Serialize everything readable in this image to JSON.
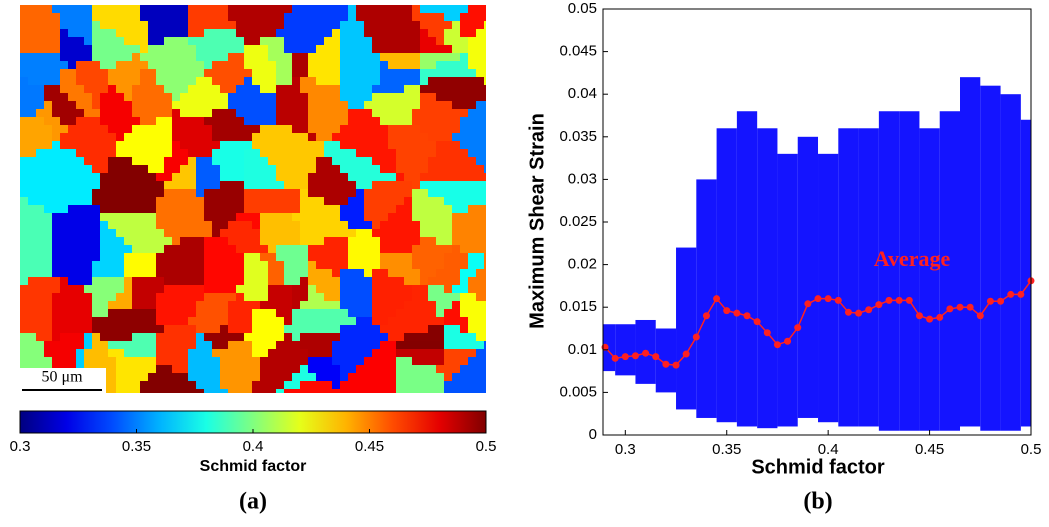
{
  "chart_data": [
    {
      "type": "heatmap",
      "colorbar": {
        "label": "Schmid factor",
        "lim": [
          0.3,
          0.5
        ],
        "ticks": [
          0.3,
          0.35,
          0.4,
          0.45,
          0.5
        ],
        "colormap": "jet"
      },
      "scale_bar": "50 μm",
      "caption": "(a)"
    },
    {
      "type": "scatter",
      "xlabel": "Schmid factor",
      "ylabel": "Maximum Shear Strain",
      "xlim": [
        0.289,
        0.5
      ],
      "xticks": [
        0.3,
        0.35,
        0.4,
        0.45,
        0.5
      ],
      "ylim": [
        0,
        0.05
      ],
      "yticks": [
        0,
        0.005,
        0.01,
        0.015,
        0.02,
        0.025,
        0.03,
        0.035,
        0.04,
        0.045,
        0.05
      ],
      "cloud": {
        "color": "#0000ff",
        "x": [
          0.29,
          0.3,
          0.31,
          0.32,
          0.33,
          0.34,
          0.35,
          0.36,
          0.37,
          0.38,
          0.39,
          0.4,
          0.41,
          0.42,
          0.43,
          0.44,
          0.45,
          0.46,
          0.47,
          0.48,
          0.49,
          0.5
        ],
        "lower": [
          0.0075,
          0.007,
          0.006,
          0.005,
          0.003,
          0.002,
          0.0015,
          0.001,
          0.0008,
          0.001,
          0.002,
          0.0015,
          0.001,
          0.001,
          0.0005,
          0.0005,
          0.0005,
          0.0005,
          0.001,
          0.0005,
          0.0005,
          0.001
        ],
        "upper": [
          0.013,
          0.013,
          0.0135,
          0.0125,
          0.022,
          0.03,
          0.036,
          0.038,
          0.036,
          0.033,
          0.035,
          0.033,
          0.036,
          0.036,
          0.038,
          0.038,
          0.036,
          0.038,
          0.042,
          0.041,
          0.04,
          0.037
        ]
      },
      "series": [
        {
          "name": "Average",
          "color": "#ff2020",
          "x": [
            0.29,
            0.295,
            0.3,
            0.305,
            0.31,
            0.315,
            0.32,
            0.325,
            0.33,
            0.335,
            0.34,
            0.345,
            0.35,
            0.355,
            0.36,
            0.365,
            0.37,
            0.375,
            0.38,
            0.385,
            0.39,
            0.395,
            0.4,
            0.405,
            0.41,
            0.415,
            0.42,
            0.425,
            0.43,
            0.435,
            0.44,
            0.445,
            0.45,
            0.455,
            0.46,
            0.465,
            0.47,
            0.475,
            0.48,
            0.485,
            0.49,
            0.495,
            0.5
          ],
          "values": [
            0.0103,
            0.009,
            0.0092,
            0.0093,
            0.0096,
            0.0092,
            0.0083,
            0.0082,
            0.0095,
            0.0115,
            0.014,
            0.016,
            0.0146,
            0.0143,
            0.014,
            0.0133,
            0.012,
            0.0106,
            0.011,
            0.0126,
            0.0154,
            0.016,
            0.016,
            0.0158,
            0.0144,
            0.0143,
            0.0147,
            0.0153,
            0.0158,
            0.0158,
            0.0158,
            0.014,
            0.0136,
            0.0138,
            0.0148,
            0.015,
            0.015,
            0.014,
            0.0157,
            0.0157,
            0.0165,
            0.0165,
            0.0181
          ]
        }
      ],
      "caption": "(b)"
    }
  ]
}
